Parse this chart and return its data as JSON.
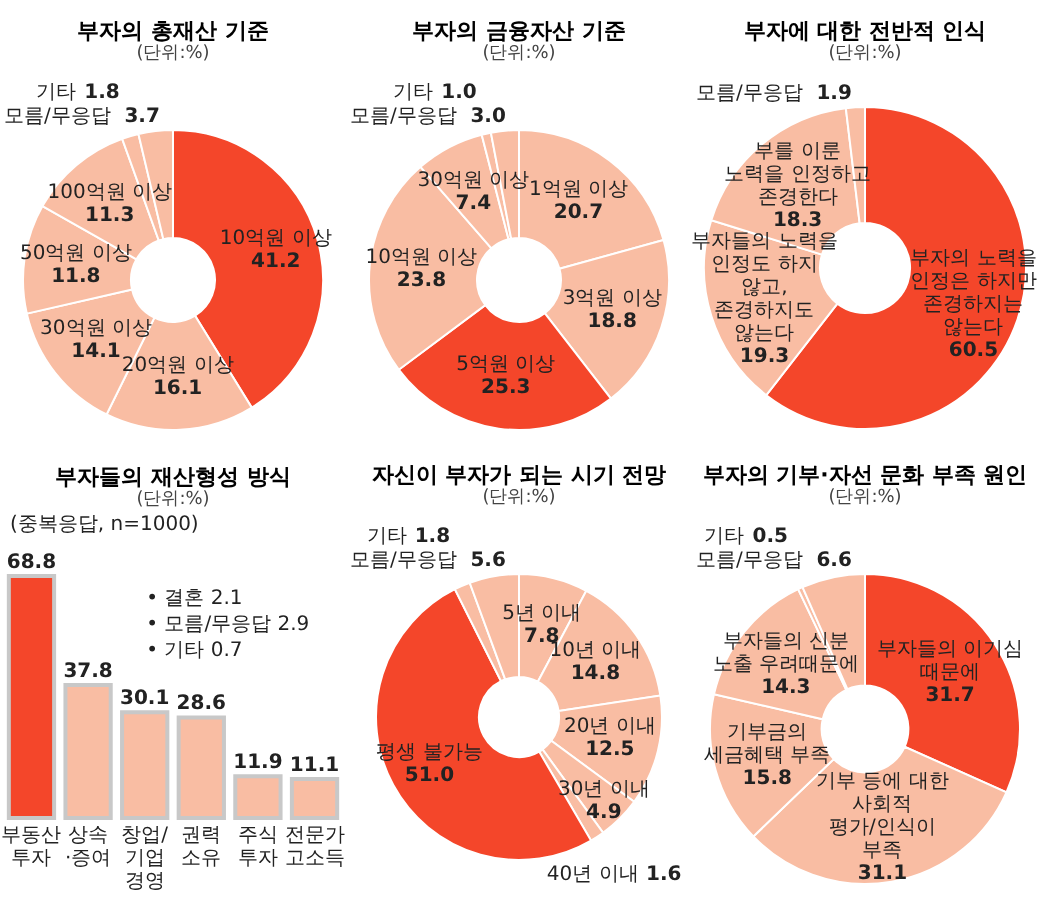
{
  "chart_data": [
    {
      "type": "donut",
      "title": "부자의 총재산 기준",
      "subtitle": "(단위:%)",
      "categories": [
        "10억원 이상",
        "20억원 이상",
        "30억원 이상",
        "50억원 이상",
        "100억원 이상",
        "기타",
        "모름/무응답"
      ],
      "values": [
        41.2,
        16.1,
        14.1,
        11.8,
        11.3,
        1.8,
        3.7
      ],
      "value_labels": [
        "41.2",
        "16.1",
        "14.1",
        "11.8",
        "11.3",
        "1.8",
        "3.7"
      ],
      "data_labels": true,
      "colors": [
        "#f4462a",
        "#f9bda3",
        "#f9bda3",
        "#f9bda3",
        "#f9bda3",
        "#f9bda3",
        "#f9bda3"
      ]
    },
    {
      "type": "donut",
      "title": "부자의 금융자산 기준",
      "subtitle": "(단위:%)",
      "categories": [
        "1억원 이상",
        "3억원 이상",
        "5억원 이상",
        "10억원 이상",
        "30억원 이상",
        "기타",
        "모름/무응답"
      ],
      "values": [
        20.7,
        18.8,
        25.3,
        23.8,
        7.4,
        1.0,
        3.0
      ],
      "value_labels": [
        "20.7",
        "18.8",
        "25.3",
        "23.8",
        "7.4",
        "1.0",
        "3.0"
      ],
      "data_labels": true,
      "colors": [
        "#f9bda3",
        "#f9bda3",
        "#f4462a",
        "#f9bda3",
        "#f9bda3",
        "#f9bda3",
        "#f9bda3"
      ]
    },
    {
      "type": "donut",
      "title": "부자에 대한 전반적 인식",
      "subtitle": "(단위:%)",
      "categories": [
        "부자의 노력을 인정은 하지만 존경하지는 않는다",
        "부자들의 노력을 인정도 하지 않고, 존경하지도 않는다",
        "부를 이룬 노력을 인정하고 존경한다",
        "모름/무응답"
      ],
      "values": [
        60.5,
        19.3,
        18.3,
        1.9
      ],
      "value_labels": [
        "60.5",
        "19.3",
        "18.3",
        "1.9"
      ],
      "data_labels": true,
      "colors": [
        "#f4462a",
        "#f9bda3",
        "#f9bda3",
        "#f9bda3"
      ]
    },
    {
      "type": "bar",
      "title": "부자들의 재산형성 방식",
      "subtitle": "(단위:%)",
      "categories": [
        "부동산 투자",
        "상속 ·증여",
        "창업/ 기업경영",
        "권력 소유",
        "주식 투자",
        "전문가 고소득"
      ],
      "values": [
        68.8,
        37.8,
        30.1,
        28.6,
        11.9,
        11.1
      ],
      "colors": [
        "#f4462a",
        "#f9bda3",
        "#f9bda3",
        "#f9bda3",
        "#f9bda3",
        "#f9bda3"
      ],
      "data_labels": true,
      "tick_labels": "x",
      "annotations": [
        "(중복응답, n=1000)",
        "• 결혼 2.1",
        "• 모름/무응답 2.9",
        "• 기타 0.7"
      ]
    },
    {
      "type": "donut",
      "title": "자신이 부자가 되는 시기 전망",
      "subtitle": "(단위:%)",
      "categories": [
        "5년 이내",
        "10년 이내",
        "20년 이내",
        "30년 이내",
        "40년 이내",
        "평생 불가능",
        "기타",
        "모름/무응답"
      ],
      "values": [
        7.8,
        14.8,
        12.5,
        4.9,
        1.6,
        51.0,
        1.8,
        5.6
      ],
      "value_labels": [
        "7.8",
        "14.8",
        "12.5",
        "4.9",
        "1.6",
        "51.0",
        "1.8",
        "5.6"
      ],
      "data_labels": true,
      "colors": [
        "#f9bda3",
        "#f9bda3",
        "#f9bda3",
        "#f9bda3",
        "#f9bda3",
        "#f4462a",
        "#f9bda3",
        "#f9bda3"
      ]
    },
    {
      "type": "donut",
      "title": "부자의 기부·자선 문화 부족 원인",
      "subtitle": "(단위:%)",
      "categories": [
        "부자들의 이기심 때문에",
        "기부 등에 대한 사회적 평가/인식이 부족",
        "기부금의 세금혜택 부족",
        "부자들의 신분 노출 우려때문에",
        "기타",
        "모름/무응답"
      ],
      "values": [
        31.7,
        31.1,
        15.8,
        14.3,
        0.5,
        6.6
      ],
      "value_labels": [
        "31.7",
        "31.1",
        "15.8",
        "14.3",
        "0.5",
        "6.6"
      ],
      "data_labels": true,
      "colors": [
        "#f4462a",
        "#f9bda3",
        "#f9bda3",
        "#f9bda3",
        "#f9bda3",
        "#f9bda3"
      ]
    }
  ]
}
